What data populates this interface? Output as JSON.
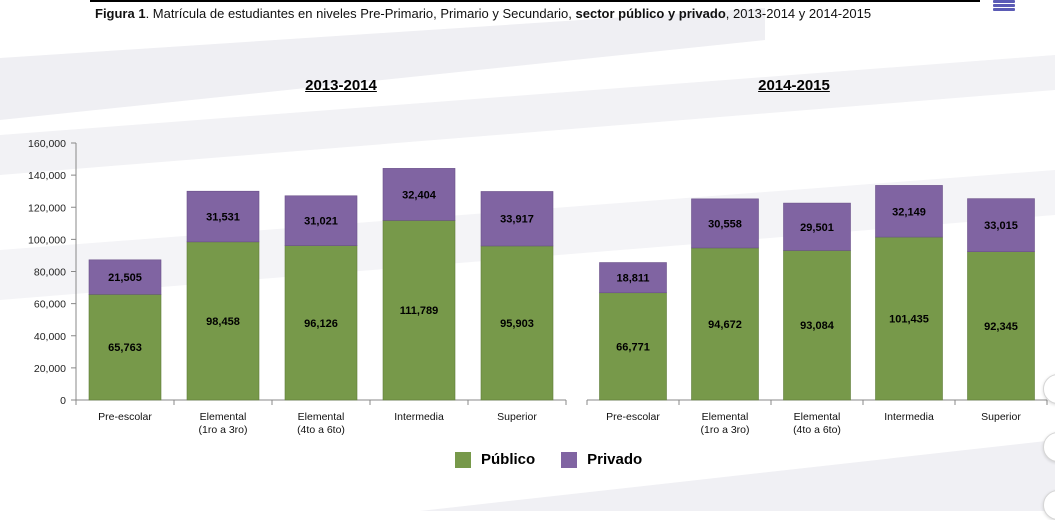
{
  "figure": {
    "label": "Figura 1",
    "text_a": ". Matrícula de estudiantes en niveles Pre-Primario, Primario y Secundario, ",
    "text_bold": "sector público y privado",
    "text_b": ", 2013-2014 y 2014-2015"
  },
  "legend": {
    "public": "Público",
    "private": "Privado"
  },
  "colors": {
    "public": "#77994a",
    "private": "#8064a2",
    "stripe": "#ededf1"
  },
  "chart_data": [
    {
      "type": "bar",
      "stacked": true,
      "title": "2013-2014",
      "categories": [
        [
          "Pre-escolar"
        ],
        [
          "Elemental",
          "(1ro a 3ro)"
        ],
        [
          "Elemental",
          "(4to a 6to)"
        ],
        [
          "Intermedia"
        ],
        [
          "Superior"
        ]
      ],
      "series": [
        {
          "name": "Público",
          "values": [
            65763,
            98458,
            96126,
            111789,
            95903
          ]
        },
        {
          "name": "Privado",
          "values": [
            21505,
            31531,
            31021,
            32404,
            33917
          ]
        }
      ],
      "data_labels": {
        "Público": [
          "65,763",
          "98,458",
          "96,126",
          "111,789",
          "95,903"
        ],
        "Privado": [
          "21,505",
          "31,531",
          "31,021",
          "32,404",
          "33,917"
        ]
      },
      "ylim": [
        0,
        160000
      ],
      "yticks": [
        "0",
        "20,000",
        "40,000",
        "60,000",
        "80,000",
        "100,000",
        "120,000",
        "140,000",
        "160,000"
      ],
      "grid": false,
      "legend_position": "bottom"
    },
    {
      "type": "bar",
      "stacked": true,
      "title": "2014-2015",
      "categories": [
        [
          "Pre-escolar"
        ],
        [
          "Elemental",
          "(1ro a 3ro)"
        ],
        [
          "Elemental",
          "(4to a 6to)"
        ],
        [
          "Intermedia"
        ],
        [
          "Superior"
        ]
      ],
      "series": [
        {
          "name": "Público",
          "values": [
            66771,
            94672,
            93084,
            101435,
            92345
          ]
        },
        {
          "name": "Privado",
          "values": [
            18811,
            30558,
            29501,
            32149,
            33015
          ]
        }
      ],
      "data_labels": {
        "Público": [
          "66,771",
          "94,672",
          "93,084",
          "101,435",
          "92,345"
        ],
        "Privado": [
          "18,811",
          "30,558",
          "29,501",
          "32,149",
          "33,015"
        ]
      },
      "ylim": [
        0,
        160000
      ],
      "grid": false,
      "legend_position": "bottom"
    }
  ]
}
